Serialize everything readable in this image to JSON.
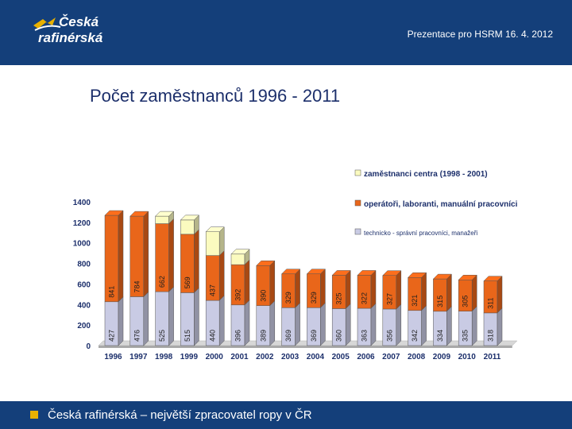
{
  "header": {
    "logo_line1": "Česká",
    "logo_line2": "rafinérská",
    "note": "Prezentace pro HSRM 16. 4. 2012"
  },
  "slide": {
    "title": "Počet zaměstnanců 1996 - 2011"
  },
  "footer": {
    "text": "Česká rafinérská – největší zpracovatel ropy v ČR"
  },
  "colors": {
    "header_bg": "#143f7a",
    "accent": "#e8b100",
    "series_blue": "#c9cbe4",
    "series_orange": "#e9661a",
    "series_yellow": "#fbfbbf",
    "axis_labels": "#1c2f6b"
  },
  "chart_data": {
    "type": "bar",
    "stacked": true,
    "categories": [
      "1996",
      "1997",
      "1998",
      "1999",
      "2000",
      "2001",
      "2002",
      "2003",
      "2004",
      "2005",
      "2006",
      "2007",
      "2008",
      "2009",
      "2010",
      "2011"
    ],
    "series": [
      {
        "name": "technicko - správní pracovníci, manažeři",
        "color": "#c9cbe4",
        "values": [
          427,
          476,
          525,
          515,
          440,
          396,
          389,
          369,
          369,
          360,
          363,
          356,
          342,
          334,
          335,
          318
        ]
      },
      {
        "name": "operátoři, laboranti, manuální pracovníci",
        "color": "#e9661a",
        "values": [
          841,
          784,
          662,
          569,
          437,
          392,
          390,
          329,
          329,
          325,
          322,
          327,
          321,
          315,
          305,
          311
        ]
      },
      {
        "name": "zaměstnanci centra (1998 - 2001)",
        "color": "#fbfbbf",
        "values": [
          0,
          0,
          73,
          139,
          231,
          103,
          0,
          0,
          0,
          0,
          0,
          0,
          0,
          0,
          0,
          0
        ]
      }
    ],
    "value_labels": {
      "technicko - správní pracovníci, manažeři": [
        "427",
        "476",
        "525",
        "515",
        "440",
        "396",
        "389",
        "369",
        "369",
        "360",
        "363",
        "356",
        "342",
        "334",
        "335",
        "318"
      ],
      "operátoři, laboranti, manuální pracovníci": [
        "841",
        "784",
        "662",
        "569",
        "437",
        "392",
        "390",
        "329",
        "329",
        "325",
        "322",
        "327",
        "321",
        "315",
        "305",
        "311"
      ]
    },
    "yticks": [
      0,
      200,
      400,
      600,
      800,
      1000,
      1200,
      1400
    ],
    "ylim": [
      0,
      1400
    ],
    "legend_order": [
      "zaměstnanci centra (1998 - 2001)",
      "operátoři, laboranti, manuální pracovníci",
      "technicko - správní pracovníci, manažeři"
    ],
    "legend_position": "top-right",
    "grid": false
  }
}
